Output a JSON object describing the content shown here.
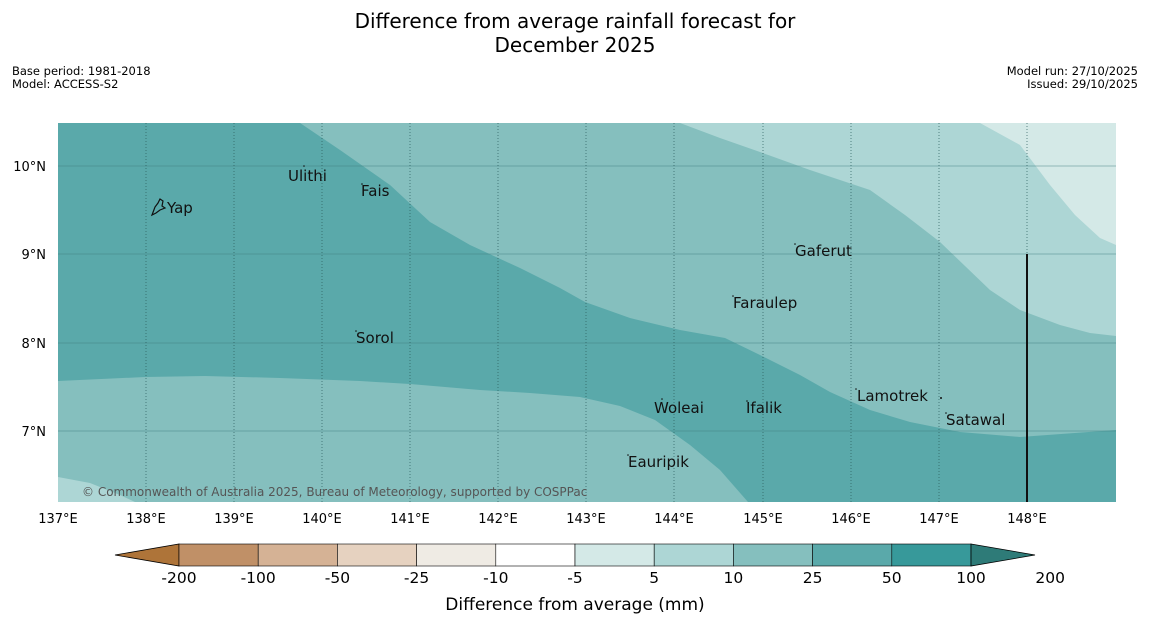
{
  "title_line1": "Difference from average rainfall forecast for",
  "title_line2": "December 2025",
  "base_period": "Base period: 1981-2018",
  "model": "Model: ACCESS-S2",
  "model_run": "Model run: 27/10/2025",
  "issued": "Issued: 29/10/2025",
  "lat_labels": [
    "10°N",
    "9°N",
    "8°N",
    "7°N"
  ],
  "lon_labels": [
    "137°E",
    "138°E",
    "139°E",
    "140°E",
    "141°E",
    "142°E",
    "143°E",
    "144°E",
    "145°E",
    "146°E",
    "147°E",
    "148°E"
  ],
  "places": {
    "yap": "Yap",
    "ulithi": "Ulithi",
    "fais": "Fais",
    "gaferut": "Gaferut",
    "faraulep": "Faraulep",
    "sorol": "Sorol",
    "lamotrek": "Lamotrek",
    "woleai": "Woleai",
    "ifalik": "Ifalik",
    "satawal": "Satawal",
    "eauripik": "Eauripik"
  },
  "copyright": "© Commonwealth of Australia 2025, Bureau of Meteorology, supported by COSPPac",
  "colorbar": {
    "ticks": [
      "-200",
      "-100",
      "-50",
      "-25",
      "-10",
      "-5",
      "5",
      "10",
      "25",
      "50",
      "100",
      "200"
    ],
    "colors": [
      "#ae7439",
      "#c09067",
      "#d5b295",
      "#e6d2c0",
      "#efebe4",
      "#ffffff",
      "#d4e9e7",
      "#add6d5",
      "#85bfbe",
      "#5aa9aa",
      "#37999a",
      "#2e7b78"
    ],
    "label": "Difference from average (mm)"
  },
  "category_colors": {
    "c10": "#d4e9e7",
    "c25": "#add6d5",
    "c50": "#85bfbe",
    "c100": "#5aa9aa"
  }
}
